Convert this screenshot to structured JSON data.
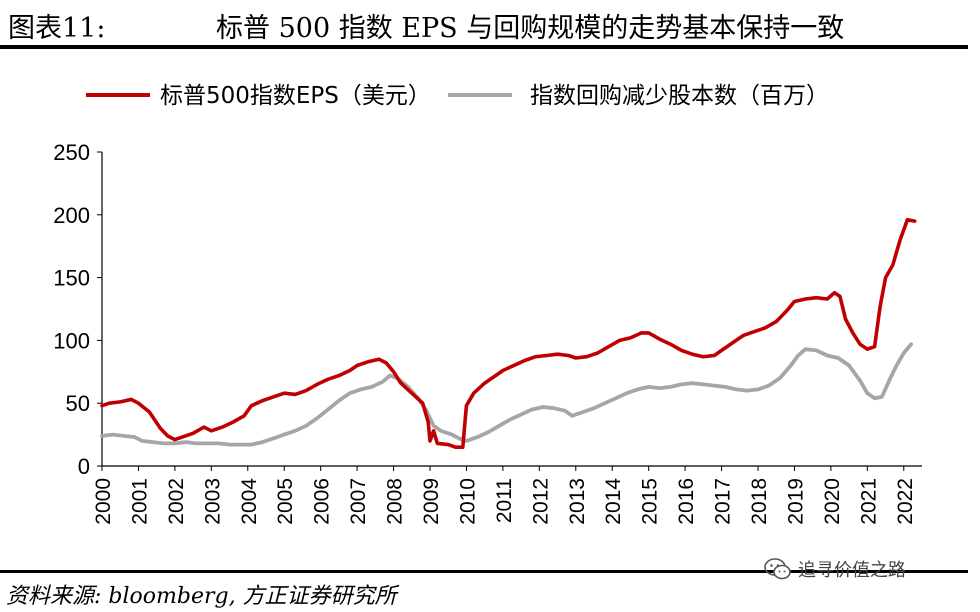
{
  "figure": {
    "label": "图表11:",
    "title": "标普 500 指数 EPS 与回购规模的走势基本保持一致"
  },
  "footer": {
    "source": "资料来源: bloomberg, 方正证券研究所",
    "watermark": "追寻价值之路",
    "watermark_icon": "wechat-icon"
  },
  "chart_data": {
    "type": "line",
    "title": "",
    "xlabel": "",
    "ylabel": "",
    "ylim": [
      0,
      250
    ],
    "yticks": [
      0,
      50,
      100,
      150,
      200,
      250
    ],
    "xlim": [
      2000,
      2022.5
    ],
    "xticks": [
      "2000",
      "2001",
      "2002",
      "2003",
      "2004",
      "2005",
      "2006",
      "2007",
      "2008",
      "2009",
      "2010",
      "2011",
      "2012",
      "2013",
      "2014",
      "2015",
      "2016",
      "2017",
      "2018",
      "2019",
      "2020",
      "2021",
      "2022"
    ],
    "grid": false,
    "legend_position": "top",
    "series": [
      {
        "name": "标普500指数EPS（美元）",
        "color": "#c00000",
        "points": [
          [
            2000.0,
            48
          ],
          [
            2000.2,
            50
          ],
          [
            2000.5,
            51
          ],
          [
            2000.8,
            53
          ],
          [
            2001.0,
            50
          ],
          [
            2001.3,
            43
          ],
          [
            2001.6,
            30
          ],
          [
            2001.8,
            24
          ],
          [
            2002.0,
            21
          ],
          [
            2002.2,
            23
          ],
          [
            2002.5,
            26
          ],
          [
            2002.8,
            31
          ],
          [
            2003.0,
            28
          ],
          [
            2003.3,
            31
          ],
          [
            2003.6,
            35
          ],
          [
            2003.9,
            40
          ],
          [
            2004.1,
            48
          ],
          [
            2004.4,
            52
          ],
          [
            2004.7,
            55
          ],
          [
            2005.0,
            58
          ],
          [
            2005.3,
            57
          ],
          [
            2005.6,
            60
          ],
          [
            2005.9,
            65
          ],
          [
            2006.2,
            69
          ],
          [
            2006.5,
            72
          ],
          [
            2006.8,
            76
          ],
          [
            2007.0,
            80
          ],
          [
            2007.3,
            83
          ],
          [
            2007.6,
            85
          ],
          [
            2007.8,
            82
          ],
          [
            2008.0,
            75
          ],
          [
            2008.2,
            66
          ],
          [
            2008.5,
            58
          ],
          [
            2008.8,
            50
          ],
          [
            2008.95,
            35
          ],
          [
            2009.0,
            20
          ],
          [
            2009.1,
            28
          ],
          [
            2009.2,
            18
          ],
          [
            2009.5,
            17
          ],
          [
            2009.7,
            15
          ],
          [
            2009.9,
            15
          ],
          [
            2010.0,
            48
          ],
          [
            2010.2,
            58
          ],
          [
            2010.5,
            66
          ],
          [
            2010.8,
            72
          ],
          [
            2011.0,
            76
          ],
          [
            2011.3,
            80
          ],
          [
            2011.6,
            84
          ],
          [
            2011.9,
            87
          ],
          [
            2012.2,
            88
          ],
          [
            2012.5,
            89
          ],
          [
            2012.8,
            88
          ],
          [
            2013.0,
            86
          ],
          [
            2013.3,
            87
          ],
          [
            2013.6,
            90
          ],
          [
            2013.9,
            95
          ],
          [
            2014.2,
            100
          ],
          [
            2014.5,
            102
          ],
          [
            2014.8,
            106
          ],
          [
            2015.0,
            106
          ],
          [
            2015.3,
            101
          ],
          [
            2015.6,
            97
          ],
          [
            2015.9,
            92
          ],
          [
            2016.2,
            89
          ],
          [
            2016.5,
            87
          ],
          [
            2016.8,
            88
          ],
          [
            2017.0,
            92
          ],
          [
            2017.3,
            98
          ],
          [
            2017.6,
            104
          ],
          [
            2017.9,
            107
          ],
          [
            2018.2,
            110
          ],
          [
            2018.5,
            115
          ],
          [
            2018.8,
            124
          ],
          [
            2019.0,
            131
          ],
          [
            2019.3,
            133
          ],
          [
            2019.6,
            134
          ],
          [
            2019.9,
            133
          ],
          [
            2020.1,
            138
          ],
          [
            2020.25,
            135
          ],
          [
            2020.4,
            117
          ],
          [
            2020.6,
            106
          ],
          [
            2020.8,
            97
          ],
          [
            2021.0,
            93
          ],
          [
            2021.2,
            95
          ],
          [
            2021.35,
            127
          ],
          [
            2021.5,
            150
          ],
          [
            2021.7,
            160
          ],
          [
            2021.9,
            180
          ],
          [
            2022.1,
            196
          ],
          [
            2022.3,
            195
          ]
        ]
      },
      {
        "name": "指数回购减少股本数（百万）",
        "color": "#a6a6a6",
        "points": [
          [
            2000.0,
            24
          ],
          [
            2000.3,
            25
          ],
          [
            2000.6,
            24
          ],
          [
            2000.9,
            23
          ],
          [
            2001.1,
            20
          ],
          [
            2001.4,
            19
          ],
          [
            2001.7,
            18
          ],
          [
            2002.0,
            18
          ],
          [
            2002.3,
            19
          ],
          [
            2002.6,
            18
          ],
          [
            2002.9,
            18
          ],
          [
            2003.2,
            18
          ],
          [
            2003.5,
            17
          ],
          [
            2003.8,
            17
          ],
          [
            2004.1,
            17
          ],
          [
            2004.4,
            19
          ],
          [
            2004.7,
            22
          ],
          [
            2005.0,
            25
          ],
          [
            2005.3,
            28
          ],
          [
            2005.6,
            32
          ],
          [
            2005.9,
            38
          ],
          [
            2006.2,
            45
          ],
          [
            2006.5,
            52
          ],
          [
            2006.8,
            58
          ],
          [
            2007.1,
            61
          ],
          [
            2007.4,
            63
          ],
          [
            2007.7,
            67
          ],
          [
            2007.9,
            72
          ],
          [
            2008.1,
            70
          ],
          [
            2008.4,
            63
          ],
          [
            2008.7,
            53
          ],
          [
            2008.9,
            44
          ],
          [
            2009.1,
            32
          ],
          [
            2009.3,
            28
          ],
          [
            2009.6,
            25
          ],
          [
            2009.8,
            22
          ],
          [
            2010.0,
            20
          ],
          [
            2010.3,
            23
          ],
          [
            2010.6,
            27
          ],
          [
            2010.9,
            32
          ],
          [
            2011.2,
            37
          ],
          [
            2011.5,
            41
          ],
          [
            2011.8,
            45
          ],
          [
            2012.1,
            47
          ],
          [
            2012.4,
            46
          ],
          [
            2012.7,
            44
          ],
          [
            2012.9,
            40
          ],
          [
            2013.2,
            43
          ],
          [
            2013.5,
            46
          ],
          [
            2013.8,
            50
          ],
          [
            2014.1,
            54
          ],
          [
            2014.4,
            58
          ],
          [
            2014.7,
            61
          ],
          [
            2015.0,
            63
          ],
          [
            2015.3,
            62
          ],
          [
            2015.6,
            63
          ],
          [
            2015.9,
            65
          ],
          [
            2016.2,
            66
          ],
          [
            2016.5,
            65
          ],
          [
            2016.8,
            64
          ],
          [
            2017.1,
            63
          ],
          [
            2017.4,
            61
          ],
          [
            2017.7,
            60
          ],
          [
            2018.0,
            61
          ],
          [
            2018.3,
            64
          ],
          [
            2018.6,
            70
          ],
          [
            2018.9,
            80
          ],
          [
            2019.1,
            88
          ],
          [
            2019.3,
            93
          ],
          [
            2019.6,
            92
          ],
          [
            2019.9,
            88
          ],
          [
            2020.2,
            86
          ],
          [
            2020.5,
            80
          ],
          [
            2020.8,
            68
          ],
          [
            2021.0,
            58
          ],
          [
            2021.2,
            54
          ],
          [
            2021.4,
            55
          ],
          [
            2021.6,
            68
          ],
          [
            2021.8,
            80
          ],
          [
            2022.0,
            90
          ],
          [
            2022.2,
            97
          ]
        ]
      }
    ]
  }
}
